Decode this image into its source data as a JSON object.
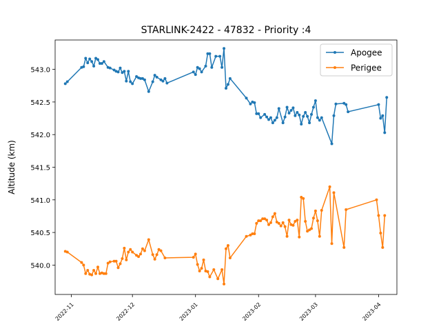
{
  "chart_data": {
    "type": "line",
    "title": "STARLINK-2422 - 47832 - Priority :4",
    "xlabel": "",
    "ylabel": "Altitude (km)",
    "x_type": "date",
    "xlim": [
      "2022-10-24",
      "2023-04-10"
    ],
    "ylim": [
      539.55,
      543.45
    ],
    "x_ticks": [
      "2022-11-01",
      "2022-12-01",
      "2023-01-01",
      "2023-02-01",
      "2023-03-01",
      "2023-04-01"
    ],
    "x_tick_labels": [
      "2022-11",
      "2022-12",
      "2023-01",
      "2023-02",
      "2023-03",
      "2023-04"
    ],
    "y_ticks": [
      540.0,
      540.5,
      541.0,
      541.5,
      542.0,
      542.5,
      543.0
    ],
    "y_tick_labels": [
      "540.0",
      "540.5",
      "541.0",
      "541.5",
      "542.0",
      "542.5",
      "543.0"
    ],
    "grid": false,
    "legend_position": "top-right",
    "series": [
      {
        "name": "Apogee",
        "color": "#1f77b4",
        "points": [
          [
            "2022-10-29",
            542.78
          ],
          [
            "2022-10-30",
            542.81
          ],
          [
            "2022-11-06",
            543.03
          ],
          [
            "2022-11-07",
            543.04
          ],
          [
            "2022-11-08",
            543.17
          ],
          [
            "2022-11-09",
            543.1
          ],
          [
            "2022-11-10",
            543.16
          ],
          [
            "2022-11-11",
            543.12
          ],
          [
            "2022-11-12",
            543.05
          ],
          [
            "2022-11-13",
            543.17
          ],
          [
            "2022-11-14",
            543.15
          ],
          [
            "2022-11-15",
            543.09
          ],
          [
            "2022-11-16",
            543.09
          ],
          [
            "2022-11-17",
            543.12
          ],
          [
            "2022-11-19",
            543.03
          ],
          [
            "2022-11-20",
            543.02
          ],
          [
            "2022-11-22",
            542.99
          ],
          [
            "2022-11-23",
            542.97
          ],
          [
            "2022-11-24",
            542.96
          ],
          [
            "2022-11-25",
            543.02
          ],
          [
            "2022-11-26",
            542.95
          ],
          [
            "2022-11-27",
            542.97
          ],
          [
            "2022-11-28",
            542.82
          ],
          [
            "2022-11-29",
            542.97
          ],
          [
            "2022-11-30",
            542.81
          ],
          [
            "2022-12-01",
            542.78
          ],
          [
            "2022-12-03",
            542.89
          ],
          [
            "2022-12-04",
            542.87
          ],
          [
            "2022-12-05",
            542.86
          ],
          [
            "2022-12-06",
            542.86
          ],
          [
            "2022-12-07",
            542.84
          ],
          [
            "2022-12-09",
            542.66
          ],
          [
            "2022-12-11",
            542.81
          ],
          [
            "2022-12-12",
            542.91
          ],
          [
            "2022-12-13",
            542.88
          ],
          [
            "2022-12-15",
            542.84
          ],
          [
            "2022-12-16",
            542.82
          ],
          [
            "2022-12-17",
            542.86
          ],
          [
            "2022-12-18",
            542.79
          ],
          [
            "2022-12-31",
            542.96
          ],
          [
            "2023-01-01",
            542.92
          ],
          [
            "2023-01-02",
            543.03
          ],
          [
            "2023-01-03",
            543.01
          ],
          [
            "2023-01-04",
            542.96
          ],
          [
            "2023-01-06",
            543.05
          ],
          [
            "2023-01-07",
            543.24
          ],
          [
            "2023-01-08",
            543.24
          ],
          [
            "2023-01-09",
            543.03
          ],
          [
            "2023-01-11",
            543.2
          ],
          [
            "2023-01-13",
            543.2
          ],
          [
            "2023-01-14",
            543.03
          ],
          [
            "2023-01-15",
            543.32
          ],
          [
            "2023-01-16",
            542.71
          ],
          [
            "2023-01-17",
            542.77
          ],
          [
            "2023-01-18",
            542.86
          ],
          [
            "2023-01-26",
            542.56
          ],
          [
            "2023-01-28",
            542.47
          ],
          [
            "2023-01-29",
            542.5
          ],
          [
            "2023-01-30",
            542.49
          ],
          [
            "2023-01-31",
            542.32
          ],
          [
            "2023-02-01",
            542.32
          ],
          [
            "2023-02-02",
            542.26
          ],
          [
            "2023-02-04",
            542.31
          ],
          [
            "2023-02-05",
            542.27
          ],
          [
            "2023-02-06",
            542.23
          ],
          [
            "2023-02-07",
            542.26
          ],
          [
            "2023-02-08",
            542.18
          ],
          [
            "2023-02-09",
            542.22
          ],
          [
            "2023-02-10",
            542.26
          ],
          [
            "2023-02-11",
            542.4
          ],
          [
            "2023-02-13",
            542.18
          ],
          [
            "2023-02-14",
            542.27
          ],
          [
            "2023-02-15",
            542.42
          ],
          [
            "2023-02-16",
            542.33
          ],
          [
            "2023-02-17",
            542.37
          ],
          [
            "2023-02-18",
            542.41
          ],
          [
            "2023-02-19",
            542.29
          ],
          [
            "2023-02-20",
            542.34
          ],
          [
            "2023-02-21",
            542.3
          ],
          [
            "2023-02-22",
            542.16
          ],
          [
            "2023-02-23",
            542.28
          ],
          [
            "2023-02-24",
            542.34
          ],
          [
            "2023-02-25",
            542.28
          ],
          [
            "2023-02-26",
            542.18
          ],
          [
            "2023-02-27",
            542.31
          ],
          [
            "2023-02-28",
            542.42
          ],
          [
            "2023-03-01",
            542.52
          ],
          [
            "2023-03-02",
            542.26
          ],
          [
            "2023-03-03",
            542.22
          ],
          [
            "2023-03-04",
            542.26
          ],
          [
            "2023-03-09",
            541.86
          ],
          [
            "2023-03-10",
            542.29
          ],
          [
            "2023-03-11",
            542.47
          ],
          [
            "2023-03-15",
            542.48
          ],
          [
            "2023-03-16",
            542.46
          ],
          [
            "2023-03-17",
            542.35
          ],
          [
            "2023-04-01",
            542.46
          ],
          [
            "2023-04-02",
            542.25
          ],
          [
            "2023-04-03",
            542.29
          ],
          [
            "2023-04-04",
            542.03
          ],
          [
            "2023-04-05",
            542.57
          ]
        ]
      },
      {
        "name": "Perigee",
        "color": "#ff7f0e",
        "points": [
          [
            "2022-10-29",
            540.21
          ],
          [
            "2022-10-30",
            540.2
          ],
          [
            "2022-11-06",
            540.04
          ],
          [
            "2022-11-07",
            540.0
          ],
          [
            "2022-11-08",
            539.87
          ],
          [
            "2022-11-09",
            539.92
          ],
          [
            "2022-11-10",
            539.86
          ],
          [
            "2022-11-11",
            539.85
          ],
          [
            "2022-11-12",
            539.92
          ],
          [
            "2022-11-13",
            539.87
          ],
          [
            "2022-11-14",
            539.97
          ],
          [
            "2022-11-15",
            539.87
          ],
          [
            "2022-11-16",
            539.88
          ],
          [
            "2022-11-17",
            539.87
          ],
          [
            "2022-11-18",
            539.87
          ],
          [
            "2022-11-19",
            540.03
          ],
          [
            "2022-11-20",
            540.05
          ],
          [
            "2022-11-22",
            540.06
          ],
          [
            "2022-11-23",
            540.06
          ],
          [
            "2022-11-24",
            539.96
          ],
          [
            "2022-11-25",
            540.02
          ],
          [
            "2022-11-26",
            540.1
          ],
          [
            "2022-11-27",
            540.26
          ],
          [
            "2022-11-28",
            540.08
          ],
          [
            "2022-11-29",
            540.2
          ],
          [
            "2022-11-30",
            540.24
          ],
          [
            "2022-12-01",
            540.2
          ],
          [
            "2022-12-03",
            540.15
          ],
          [
            "2022-12-04",
            540.13
          ],
          [
            "2022-12-05",
            540.17
          ],
          [
            "2022-12-06",
            540.25
          ],
          [
            "2022-12-07",
            540.22
          ],
          [
            "2022-12-09",
            540.39
          ],
          [
            "2022-12-11",
            540.16
          ],
          [
            "2022-12-12",
            540.09
          ],
          [
            "2022-12-13",
            540.16
          ],
          [
            "2022-12-14",
            540.24
          ],
          [
            "2022-12-15",
            540.22
          ],
          [
            "2022-12-17",
            540.11
          ],
          [
            "2022-12-31",
            540.12
          ],
          [
            "2023-01-01",
            540.17
          ],
          [
            "2023-01-02",
            540.01
          ],
          [
            "2023-01-03",
            539.91
          ],
          [
            "2023-01-04",
            539.95
          ],
          [
            "2023-01-05",
            540.08
          ],
          [
            "2023-01-06",
            539.91
          ],
          [
            "2023-01-07",
            539.9
          ],
          [
            "2023-01-08",
            539.82
          ],
          [
            "2023-01-10",
            539.93
          ],
          [
            "2023-01-12",
            539.79
          ],
          [
            "2023-01-14",
            539.93
          ],
          [
            "2023-01-15",
            539.71
          ],
          [
            "2023-01-16",
            540.25
          ],
          [
            "2023-01-17",
            540.3
          ],
          [
            "2023-01-18",
            540.11
          ],
          [
            "2023-01-26",
            540.44
          ],
          [
            "2023-01-28",
            540.46
          ],
          [
            "2023-01-29",
            540.48
          ],
          [
            "2023-01-30",
            540.48
          ],
          [
            "2023-01-31",
            540.64
          ],
          [
            "2023-02-01",
            540.68
          ],
          [
            "2023-02-02",
            540.68
          ],
          [
            "2023-02-03",
            540.71
          ],
          [
            "2023-02-04",
            540.71
          ],
          [
            "2023-02-05",
            540.69
          ],
          [
            "2023-02-06",
            540.62
          ],
          [
            "2023-02-07",
            540.65
          ],
          [
            "2023-02-08",
            540.74
          ],
          [
            "2023-02-09",
            540.79
          ],
          [
            "2023-02-10",
            540.66
          ],
          [
            "2023-02-11",
            540.64
          ],
          [
            "2023-02-12",
            540.6
          ],
          [
            "2023-02-13",
            540.65
          ],
          [
            "2023-02-14",
            540.59
          ],
          [
            "2023-02-15",
            540.44
          ],
          [
            "2023-02-16",
            540.69
          ],
          [
            "2023-02-17",
            540.62
          ],
          [
            "2023-02-18",
            540.61
          ],
          [
            "2023-02-19",
            540.67
          ],
          [
            "2023-02-20",
            540.69
          ],
          [
            "2023-02-21",
            540.43
          ],
          [
            "2023-02-22",
            541.04
          ],
          [
            "2023-02-23",
            541.02
          ],
          [
            "2023-02-24",
            540.67
          ],
          [
            "2023-02-25",
            540.52
          ],
          [
            "2023-02-26",
            540.54
          ],
          [
            "2023-02-27",
            540.56
          ],
          [
            "2023-02-28",
            540.72
          ],
          [
            "2023-03-01",
            540.83
          ],
          [
            "2023-03-02",
            540.68
          ],
          [
            "2023-03-03",
            540.44
          ],
          [
            "2023-03-04",
            540.84
          ],
          [
            "2023-03-08",
            541.2
          ],
          [
            "2023-03-09",
            540.33
          ],
          [
            "2023-03-10",
            541.11
          ],
          [
            "2023-03-15",
            540.27
          ],
          [
            "2023-03-16",
            540.85
          ],
          [
            "2023-03-31",
            541.0
          ],
          [
            "2023-04-01",
            540.76
          ],
          [
            "2023-04-02",
            540.49
          ],
          [
            "2023-04-03",
            540.27
          ],
          [
            "2023-04-04",
            540.76
          ]
        ]
      }
    ]
  }
}
